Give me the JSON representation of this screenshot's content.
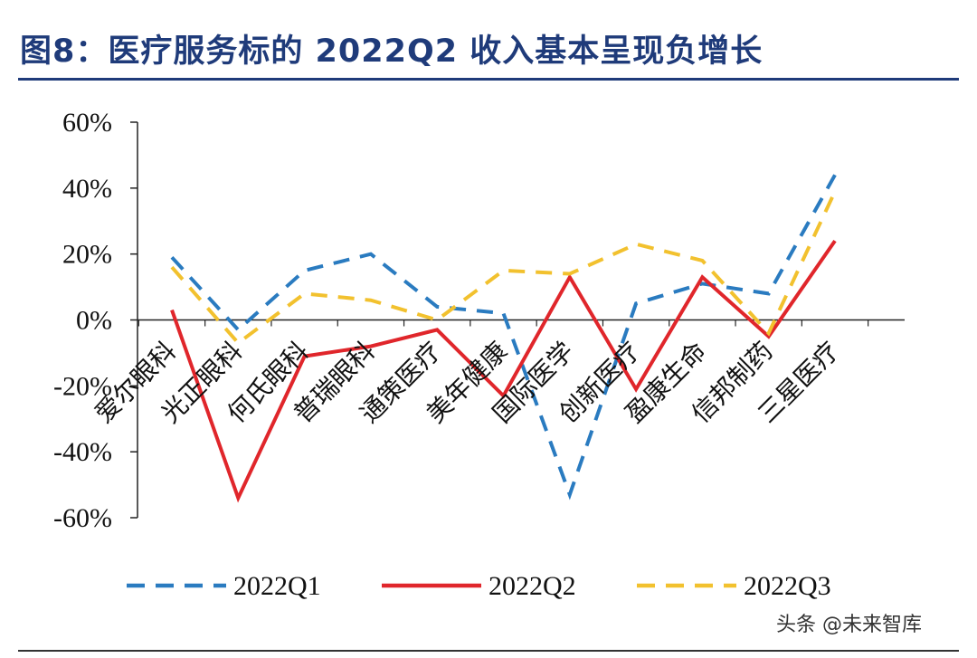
{
  "title": "图8：医疗服务标的 2022Q2 收入基本呈现负增长",
  "watermark": "头条 @未来智库",
  "colors": {
    "q1": "#2a7bc0",
    "q2": "#e0262b",
    "q3": "#f2c12e",
    "title": "#1f3b7a"
  },
  "chart_data": {
    "type": "line",
    "title": "图8：医疗服务标的 2022Q2 收入基本呈现负增长",
    "xlabel": "",
    "ylabel": "",
    "ylim": [
      -0.6,
      0.6
    ],
    "yticks": [
      0.6,
      0.4,
      0.2,
      0,
      -0.2,
      -0.4,
      -0.6
    ],
    "ytick_labels": [
      "60%",
      "40%",
      "20%",
      "0%",
      "-20%",
      "-40%",
      "-60%"
    ],
    "categories": [
      "爱尔眼科",
      "光正眼科",
      "何氏眼科",
      "普瑞眼科",
      "通策医疗",
      "美年健康",
      "国际医学",
      "创新医疗",
      "盈康生命",
      "信邦制药",
      "三星医疗"
    ],
    "legend_position": "bottom",
    "grid": false,
    "series": [
      {
        "name": "2022Q1",
        "style": "dashed",
        "values": [
          0.19,
          -0.03,
          0.15,
          0.2,
          0.04,
          0.02,
          -0.53,
          0.05,
          0.11,
          0.08,
          0.44
        ]
      },
      {
        "name": "2022Q2",
        "style": "solid",
        "values": [
          0.03,
          -0.54,
          -0.11,
          -0.08,
          -0.03,
          -0.23,
          0.13,
          -0.21,
          0.13,
          -0.05,
          0.24
        ]
      },
      {
        "name": "2022Q3",
        "style": "dashed",
        "values": [
          0.16,
          -0.07,
          0.08,
          0.06,
          0.0,
          0.15,
          0.14,
          0.23,
          0.18,
          -0.04,
          0.39
        ]
      }
    ]
  }
}
